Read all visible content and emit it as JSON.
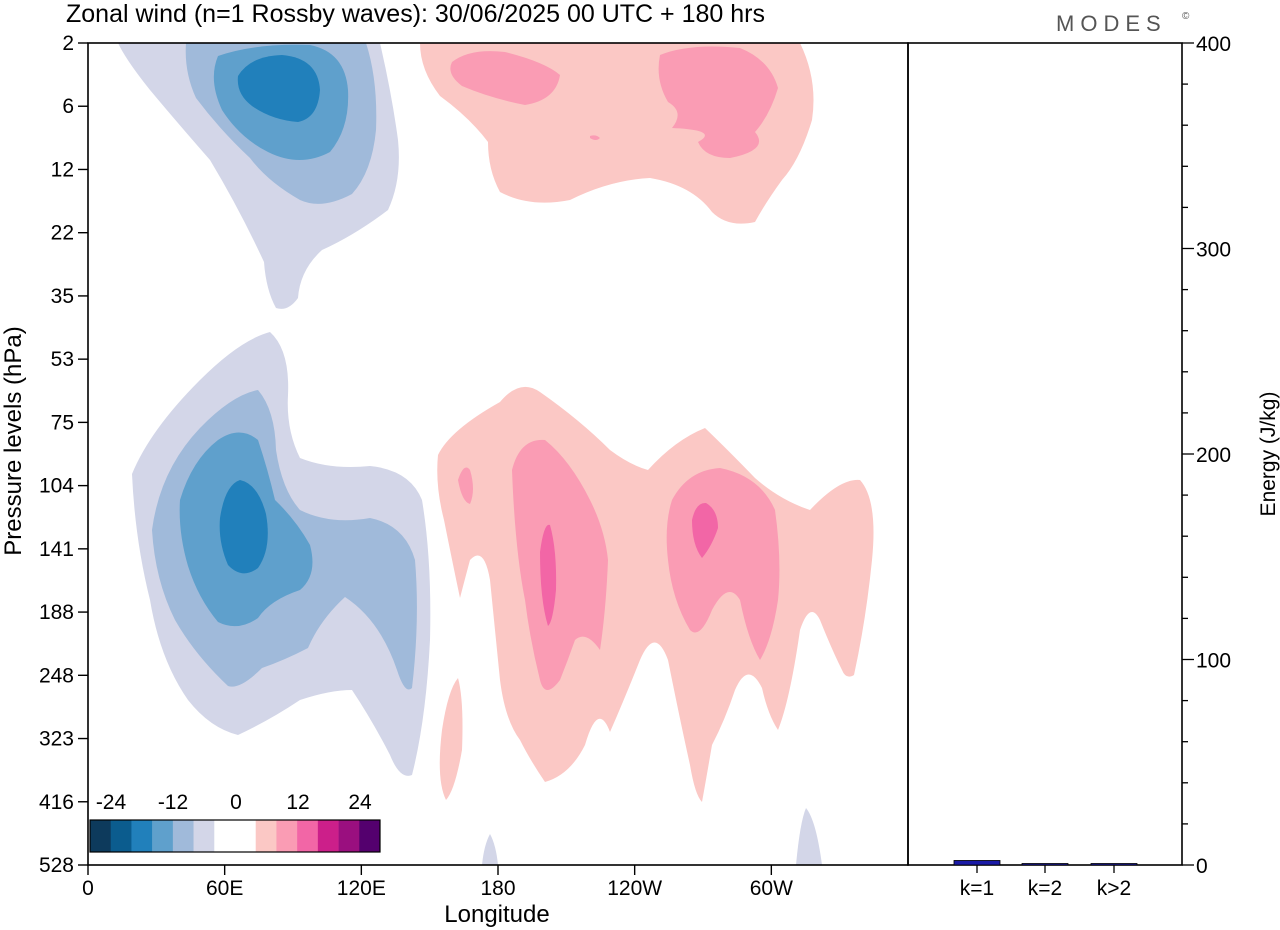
{
  "title": "Zonal wind (n=1 Rossby waves):  30/06/2025  00 UTC  + 180 hrs",
  "logo": "MODES",
  "logo_mark": "©",
  "chart_data": [
    {
      "type": "heatmap",
      "xlabel": "Longitude",
      "ylabel": "Pressure levels (hPa)",
      "x_ticks": [
        "0",
        "60E",
        "120E",
        "180",
        "120W",
        "60W"
      ],
      "x_tick_degrees": [
        0,
        60,
        120,
        180,
        240,
        300
      ],
      "xlim": [
        0,
        360
      ],
      "y_ticks": [
        "2",
        "6",
        "12",
        "22",
        "35",
        "53",
        "75",
        "104",
        "141",
        "188",
        "248",
        "323",
        "416",
        "528"
      ],
      "y_scale": "ordinal-levels",
      "colorbar": {
        "labels": [
          "-24",
          "-12",
          "0",
          "12",
          "24"
        ],
        "colors": [
          "#0d3a5c",
          "#0b5c8e",
          "#2180bb",
          "#5fa0cc",
          "#a0bada",
          "#d3d6e8",
          "#ffffff",
          "#ffffff",
          "#fbc8c5",
          "#fa9cb4",
          "#f266a6",
          "#cc1f8a",
          "#9a0f7f",
          "#54006e"
        ]
      },
      "features": [
        {
          "name": "upper-negative",
          "sign": "negative",
          "lon": [
            15,
            140
          ],
          "levels": [
            "2",
            "35"
          ],
          "peak": -18,
          "peak_lon": 77,
          "peak_level": "6"
        },
        {
          "name": "upper-positive",
          "sign": "positive",
          "lon": [
            145,
            320
          ],
          "levels": [
            "2",
            "22"
          ],
          "peak": 12,
          "peak_lon": 275,
          "peak_level": "6"
        },
        {
          "name": "lower-negative",
          "sign": "negative",
          "lon": [
            20,
            150
          ],
          "levels": [
            "53",
            "416"
          ],
          "peak": -18,
          "peak_lon": 68,
          "peak_level": "141"
        },
        {
          "name": "lower-positive",
          "sign": "positive",
          "lon": [
            150,
            345
          ],
          "levels": [
            "53",
            "416"
          ],
          "peak": 18,
          "peak_lon": 200,
          "peak_level": "141"
        }
      ]
    },
    {
      "type": "bar",
      "categories": [
        "k=1",
        "k=2",
        "k>2"
      ],
      "values": [
        2.2,
        0.4,
        0.6
      ],
      "ylabel": "Energy (J/kg)",
      "ylim": [
        0,
        400
      ],
      "y_ticks": [
        "0",
        "100",
        "200",
        "300",
        "400"
      ],
      "y_tick_values": [
        0,
        100,
        200,
        300,
        400
      ],
      "bar_color": "#1a1aa6"
    }
  ]
}
